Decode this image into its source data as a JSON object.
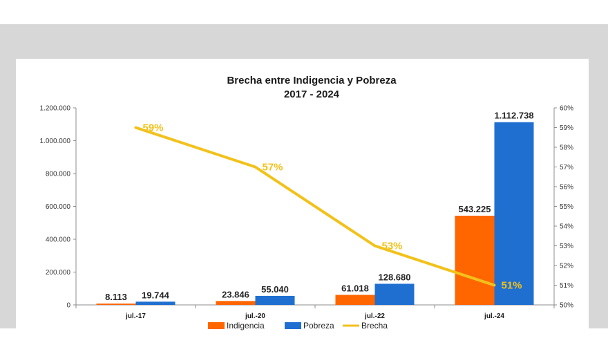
{
  "colors": {
    "indigencia": "#ff6600",
    "pobreza": "#1f6fd1",
    "brecha": "#f2c21b"
  },
  "chart_data": {
    "type": "bar",
    "title_line1": "Brecha entre Indigencia y Pobreza",
    "title_line2": "2017 - 2024",
    "categories": [
      "jul.-17",
      "jul.-20",
      "jul.-22",
      "jul.-24"
    ],
    "series": [
      {
        "name": "Indigencia",
        "type": "bar",
        "axis": "left",
        "values": [
          8113,
          23846,
          61018,
          543225
        ],
        "labels": [
          "8.113",
          "23.846",
          "61.018",
          "543.225"
        ]
      },
      {
        "name": "Pobreza",
        "type": "bar",
        "axis": "left",
        "values": [
          19744,
          55040,
          128680,
          1112738
        ],
        "labels": [
          "19.744",
          "55.040",
          "128.680",
          "1.112.738"
        ]
      },
      {
        "name": "Brecha",
        "type": "line",
        "axis": "right",
        "values": [
          59,
          57,
          53,
          51
        ],
        "labels": [
          "59%",
          "57%",
          "53%",
          "51%"
        ]
      }
    ],
    "ylim": [
      0,
      1200000
    ],
    "yticks": [
      "0",
      "200.000",
      "400.000",
      "600.000",
      "800.000",
      "1.000.000",
      "1.200.000"
    ],
    "y2lim": [
      50,
      60
    ],
    "y2ticks": [
      "50%",
      "51%",
      "52%",
      "53%",
      "54%",
      "55%",
      "56%",
      "57%",
      "58%",
      "59%",
      "60%"
    ],
    "legend_position": "bottom",
    "grid": false
  }
}
